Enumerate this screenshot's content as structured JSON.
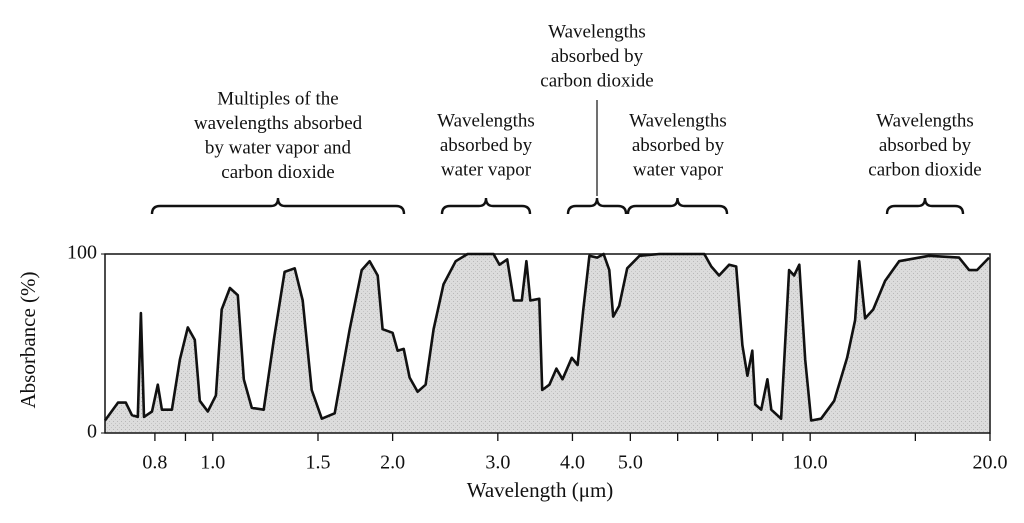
{
  "chart_data": {
    "type": "area",
    "xlabel": "Wavelength (μm)",
    "ylabel": "Absorbance (%)",
    "xscale": "log",
    "xlim": [
      0.66,
      20
    ],
    "ylim": [
      0,
      100
    ],
    "xticks": [
      0.8,
      {
        "value": 1,
        "label": "1.0"
      },
      1.5,
      {
        "value": 2,
        "label": "2.0"
      },
      {
        "value": 3,
        "label": "3.0"
      },
      {
        "value": 4,
        "label": "4.0"
      },
      {
        "value": 5,
        "label": "5.0"
      },
      {
        "value": 10,
        "label": "10.0"
      },
      {
        "value": 20,
        "label": "20.0"
      }
    ],
    "xminorticks": [
      0.9,
      6,
      7,
      8,
      9,
      15
    ],
    "yticks": [
      0,
      100
    ],
    "color": "#d9d9d9",
    "line_color": "#111111",
    "annotations": [
      [
        "Multiples of  the",
        "wavelengths absorbed",
        "by water vapor and",
        "carbon dioxide"
      ],
      [
        "Wavelengths",
        "absorbed by",
        "water vapor"
      ],
      [
        "Wavelengths",
        "absorbed by",
        "carbon dioxide"
      ],
      [
        "Wavelengths",
        "absorbed by",
        "water vapor"
      ],
      [
        "Wavelengths",
        "absorbed by",
        "carbon dioxide"
      ]
    ],
    "x": [
      0.66,
      0.694,
      0.715,
      0.732,
      0.749,
      0.758,
      0.767,
      0.791,
      0.809,
      0.822,
      0.854,
      0.881,
      0.908,
      0.933,
      0.951,
      0.981,
      1.012,
      1.035,
      1.068,
      1.101,
      1.127,
      1.162,
      1.217,
      1.265,
      1.319,
      1.371,
      1.414,
      1.464,
      1.522,
      1.6,
      1.695,
      1.775,
      1.83,
      1.888,
      1.924,
      2.0,
      2.039,
      2.087,
      2.135,
      2.202,
      2.271,
      2.342,
      2.433,
      2.55,
      2.67,
      2.95,
      3.02,
      3.11,
      3.19,
      3.29,
      3.35,
      3.4,
      3.52,
      3.56,
      3.66,
      3.76,
      3.85,
      3.99,
      4.08,
      4.17,
      4.27,
      4.4,
      4.51,
      4.61,
      4.68,
      4.79,
      4.94,
      5.18,
      5.59,
      6.65,
      6.83,
      7.04,
      7.32,
      7.52,
      7.7,
      7.85,
      8.0,
      8.09,
      8.28,
      8.48,
      8.61,
      8.94,
      9.22,
      9.4,
      9.59,
      9.81,
      10.04,
      10.43,
      10.97,
      11.53,
      11.89,
      12.08,
      12.36,
      12.75,
      13.35,
      14.09,
      15.81,
      17.75,
      18.45,
      19.02,
      19.93
    ],
    "values": [
      7,
      17,
      17,
      10,
      9,
      67,
      9,
      12,
      27,
      13,
      13,
      41,
      59,
      52,
      18,
      12,
      21,
      69,
      81,
      77,
      30,
      14,
      13,
      52,
      90,
      92,
      74,
      24,
      8,
      11,
      58,
      91,
      96,
      88,
      58,
      56,
      46,
      47,
      31,
      23,
      27,
      58,
      83,
      96,
      100,
      100,
      94,
      97,
      74,
      74,
      96,
      74,
      75,
      24,
      27,
      36,
      30,
      42,
      38,
      69,
      99,
      98,
      100,
      91,
      65,
      71,
      92,
      99,
      100,
      100,
      93,
      88,
      94,
      93,
      49,
      32,
      46,
      16,
      13,
      30,
      13,
      8,
      91,
      88,
      94,
      41,
      7,
      8,
      18,
      42,
      63,
      96,
      64,
      69,
      85,
      96,
      99,
      98,
      91,
      91,
      98
    ]
  }
}
